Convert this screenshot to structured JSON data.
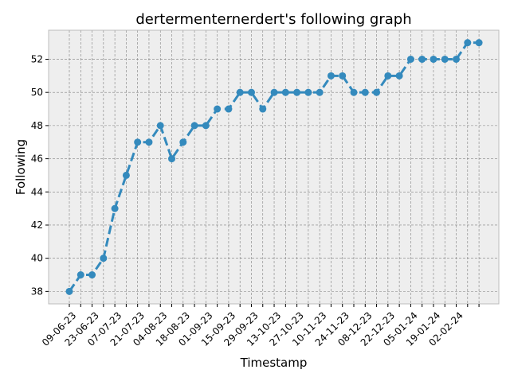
{
  "chart_data": {
    "type": "line",
    "title": "dertermenternerdert's following graph",
    "xlabel": "Timestamp",
    "ylabel": "Following",
    "x_tick_labels": [
      "09-06-23",
      "23-06-23",
      "07-07-23",
      "21-07-23",
      "04-08-23",
      "18-08-23",
      "01-09-23",
      "15-09-23",
      "29-09-23",
      "13-10-23",
      "27-10-23",
      "10-11-23",
      "24-11-23",
      "08-12-23",
      "22-12-23",
      "05-01-24",
      "19-01-24",
      "02-02-24"
    ],
    "y_ticks": [
      38,
      40,
      42,
      44,
      46,
      48,
      50,
      52
    ],
    "ylim": [
      37.25,
      53.75
    ],
    "grid": true,
    "line_style": "dashed",
    "marker": "circle",
    "series": [
      {
        "name": "",
        "values": [
          38,
          39,
          39,
          40,
          43,
          45,
          47,
          47,
          48,
          46,
          47,
          48,
          48,
          49,
          49,
          50,
          50,
          49,
          50,
          50,
          50,
          50,
          50,
          51,
          51,
          50,
          50,
          50,
          51,
          51,
          52,
          52,
          52,
          52,
          52,
          53,
          53
        ]
      }
    ]
  },
  "colors": {
    "line": "#348ABD",
    "plot_background": "#EEEEEE",
    "grid": "#808080",
    "frame": "#BCBCBC"
  }
}
